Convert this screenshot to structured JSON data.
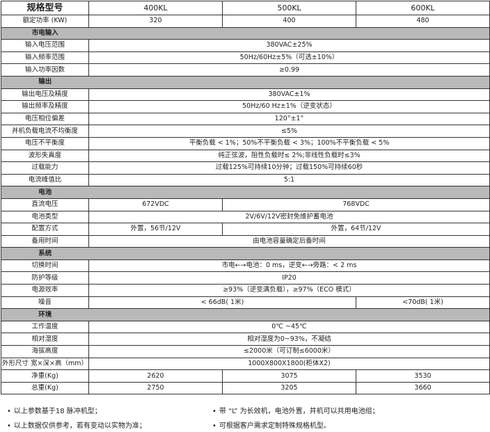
{
  "header": {
    "label": "规格型号",
    "models": [
      "400KL",
      "500KL",
      "600KL"
    ]
  },
  "rows": [
    {
      "type": "row",
      "label": "额定功率 (KW)",
      "cells": [
        {
          "text": "320",
          "span": 1
        },
        {
          "text": "400",
          "span": 1
        },
        {
          "text": "480",
          "span": 1
        }
      ]
    },
    {
      "type": "section",
      "label": "市电输入"
    },
    {
      "type": "row",
      "label": "输入电压范围",
      "cells": [
        {
          "text": "380VAC±25%",
          "span": 3
        }
      ]
    },
    {
      "type": "row",
      "label": "输入频率范围",
      "cells": [
        {
          "text": "50Hz/60Hz±5%（可选±10%）",
          "span": 3
        }
      ]
    },
    {
      "type": "row",
      "label": "输入功率因数",
      "cells": [
        {
          "text": "≥0.99",
          "span": 3
        }
      ]
    },
    {
      "type": "section",
      "label": "输出"
    },
    {
      "type": "row",
      "label": "输出电压及精度",
      "cells": [
        {
          "text": "380VAC±1%",
          "span": 3
        }
      ]
    },
    {
      "type": "row",
      "label": "输出频率及精度",
      "cells": [
        {
          "text": "50Hz/60 Hz±1%（逆变状态）",
          "span": 3
        }
      ]
    },
    {
      "type": "row",
      "label": "电压相位偏差",
      "cells": [
        {
          "text": "120°±1°",
          "span": 3
        }
      ]
    },
    {
      "type": "row",
      "label": "并机负载电流不均衡度",
      "cells": [
        {
          "text": "≤5%",
          "span": 3
        }
      ]
    },
    {
      "type": "row",
      "label": "电压不平衡度",
      "cells": [
        {
          "text": "平衡负载 < 1%；50%不平衡负载 < 3%；100%不平衡负载 < 5%",
          "span": 3
        }
      ]
    },
    {
      "type": "row",
      "label": "波形失真度",
      "cells": [
        {
          "text": "纯正弦波，阻性负载时≤ 2%;非线性负载时≤3%",
          "span": 3
        }
      ]
    },
    {
      "type": "row",
      "label": "过载能力",
      "cells": [
        {
          "text": "过载125%可持续10分钟；过载150%可持续60秒",
          "span": 3
        }
      ]
    },
    {
      "type": "row",
      "label": "电流峰值比",
      "cells": [
        {
          "text": "5:1",
          "span": 3
        }
      ]
    },
    {
      "type": "section",
      "label": "电池"
    },
    {
      "type": "row",
      "label": "直流电压",
      "cells": [
        {
          "text": "672VDC",
          "span": 1
        },
        {
          "text": "768VDC",
          "span": 2
        }
      ]
    },
    {
      "type": "row",
      "label": "电池类型",
      "cells": [
        {
          "text": "2V/6V/12V密封免维护蓄电池",
          "span": 3
        }
      ]
    },
    {
      "type": "row",
      "label": "配置方式",
      "cells": [
        {
          "text": "外置，56节/12V",
          "span": 1
        },
        {
          "text": "外置，64节/12V",
          "span": 2
        }
      ]
    },
    {
      "type": "row",
      "label": "备用时间",
      "cells": [
        {
          "text": "由电池容量确定后备时间",
          "span": 3
        }
      ]
    },
    {
      "type": "section",
      "label": "系统"
    },
    {
      "type": "row",
      "label": "切换时间",
      "cells": [
        {
          "text": "市电←→电池：0 ms，逆变←→旁路：< 2 ms",
          "span": 3
        }
      ]
    },
    {
      "type": "row",
      "label": "防护等级",
      "cells": [
        {
          "text": "IP20",
          "span": 3
        }
      ]
    },
    {
      "type": "row",
      "label": "电源效率",
      "cells": [
        {
          "text": "≥93%（逆变满负载），≥97%（ECO 模式）",
          "span": 3
        }
      ]
    },
    {
      "type": "row",
      "label": "噪音",
      "cells": [
        {
          "text": "< 66dB( 1米)",
          "span": 2
        },
        {
          "text": "<70dB( 1米)",
          "span": 1
        }
      ]
    },
    {
      "type": "section",
      "label": "环境"
    },
    {
      "type": "row",
      "label": "工作温度",
      "cells": [
        {
          "text": "0℃ ~45℃",
          "span": 3
        }
      ]
    },
    {
      "type": "row",
      "label": "相对湿度",
      "cells": [
        {
          "text": "相对湿度为0~93%，不凝结",
          "span": 3
        }
      ]
    },
    {
      "type": "row",
      "label": "海拔高度",
      "cells": [
        {
          "text": "≤2000米（可订制≤6000米）",
          "span": 3
        }
      ]
    },
    {
      "type": "row",
      "label": "外形尺寸 宽×深×高（mm）",
      "cells": [
        {
          "text": "1000X800X1800(柜体X2)",
          "span": 3
        }
      ]
    },
    {
      "type": "row",
      "label": "净重(Kg)",
      "cells": [
        {
          "text": "2620",
          "span": 1
        },
        {
          "text": "3075",
          "span": 1
        },
        {
          "text": "3530",
          "span": 1
        }
      ]
    },
    {
      "type": "row",
      "label": "总重(Kg)",
      "cells": [
        {
          "text": "2750",
          "span": 1
        },
        {
          "text": "3205",
          "span": 1
        },
        {
          "text": "3660",
          "span": 1
        }
      ]
    }
  ],
  "notes": [
    "以上参数基于18 脉冲机型；",
    "带 “L” 为长效机，电池外置，并机可以共用电池组；",
    "以上数据仅供参考，若有变动以实物为准；",
    "可根据客户需求定制特殊规格机型。"
  ],
  "colors": {
    "section_bg": "#b9b9b9",
    "border": "#333333"
  }
}
